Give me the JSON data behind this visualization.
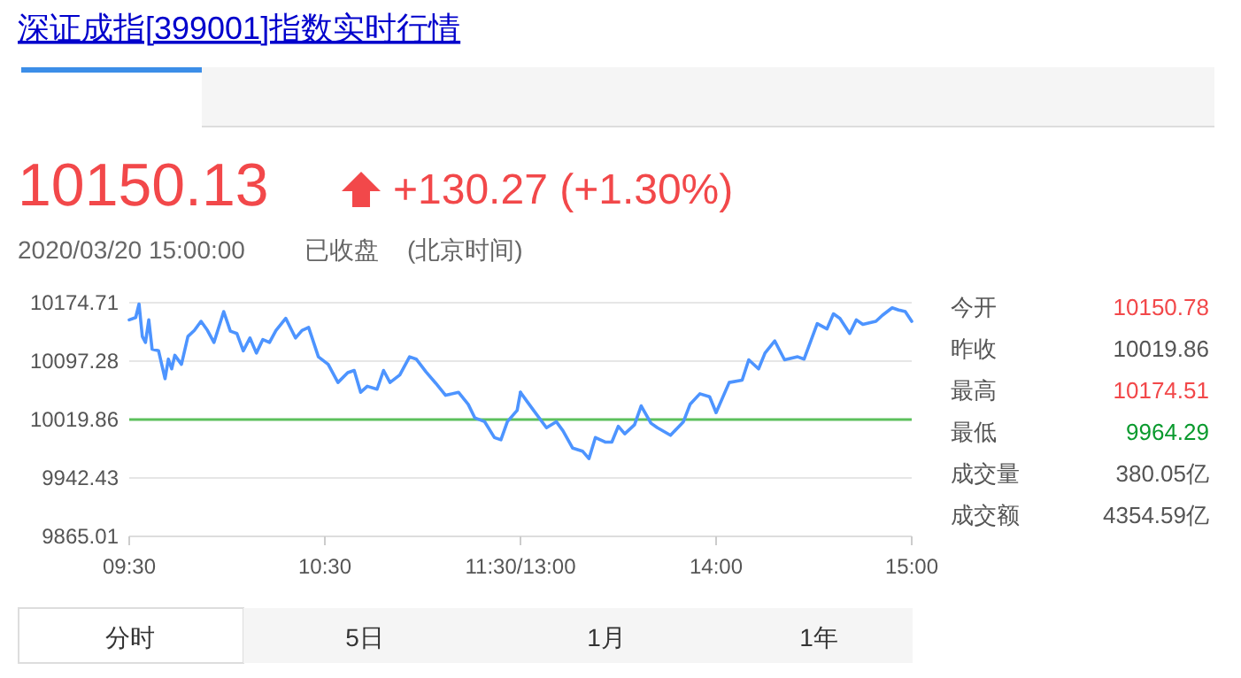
{
  "chart_data": [
    {
      "type": "line",
      "title": "深证成指[399001]指数实时行情",
      "x": [
        9.5,
        9.533,
        9.55,
        9.567,
        9.583,
        9.6,
        9.617,
        9.65,
        9.683,
        9.7,
        9.717,
        9.733,
        9.767,
        9.8,
        9.833,
        9.867,
        9.9,
        9.933,
        9.983,
        10.017,
        10.05,
        10.083,
        10.117,
        10.15,
        10.183,
        10.217,
        10.25,
        10.3,
        10.35,
        10.383,
        10.417,
        10.467,
        10.517,
        10.567,
        10.617,
        10.65,
        10.683,
        10.717,
        10.767,
        10.8,
        10.833,
        10.883,
        10.933,
        10.967,
        11.017,
        11.067,
        11.117,
        11.183,
        11.233,
        11.267,
        11.317,
        11.367,
        11.4,
        11.433,
        11.483,
        11.5
      ],
      "series": [
        {
          "color": "#4d94ff",
          "values": [
            10152,
            10155,
            10173,
            10130,
            10122,
            10152,
            10113,
            10111,
            10074,
            10100,
            10087,
            10105,
            10093,
            10130,
            10138,
            10150,
            10138,
            10122,
            10163,
            10137,
            10134,
            10111,
            10128,
            10108,
            10126,
            10122,
            10138,
            10154,
            10128,
            10138,
            10142,
            10103,
            10093,
            10069,
            10082,
            10085,
            10056,
            10064,
            10060,
            10085,
            10069,
            10079,
            10103,
            10100,
            10083,
            10068,
            10052,
            10056,
            10040,
            10022,
            10017,
            9996,
            9993,
            10017,
            10032,
            10056
          ]
        }
      ],
      "xlim": [
        9.5,
        11.5
      ],
      "xticks": [
        {
          "value": 9.5,
          "label": "09:30"
        },
        {
          "value": 10.5,
          "label": "10:30"
        },
        {
          "value": 11.5,
          "label": "11:30/13:00"
        }
      ],
      "ylim": [
        9865.01,
        10174.71
      ],
      "yticks": [
        {
          "value": 9865.01,
          "label": "9865.01"
        },
        {
          "value": 9942.43,
          "label": "9942.43"
        },
        {
          "value": 10019.86,
          "label": "10019.86"
        },
        {
          "value": 10097.28,
          "label": "10097.28"
        },
        {
          "value": 10174.71,
          "label": "10174.71"
        }
      ],
      "grid": "y",
      "ref_lines": [
        {
          "axis": "y",
          "value": 10019.86,
          "color": "#5cc05c"
        }
      ],
      "annotations": [
        "10150.13",
        "+130.27 (+1.30%)",
        "2020/03/20 15:00:00",
        "已收盘",
        "(北京时间)",
        "今开",
        "10150.78",
        "昨收",
        "10019.86",
        "最高",
        "10174.51",
        "最低",
        "9964.29",
        "成交量",
        "380.05亿",
        "成交额",
        "4354.59亿",
        "分时",
        "5日",
        "1月",
        "1年"
      ]
    },
    {
      "type": "line",
      "x": [
        13,
        13.033,
        13.067,
        13.133,
        13.183,
        13.217,
        13.267,
        13.317,
        13.35,
        13.383,
        13.433,
        13.467,
        13.5,
        13.533,
        13.583,
        13.617,
        13.667,
        13.7,
        13.767,
        13.833,
        13.867,
        13.917,
        13.967,
        14,
        14.067,
        14.133,
        14.167,
        14.217,
        14.25,
        14.3,
        14.35,
        14.417,
        14.45,
        14.517,
        14.567,
        14.6,
        14.633,
        14.683,
        14.717,
        14.75,
        14.817,
        14.85,
        14.9,
        14.933,
        14.967,
        15
      ],
      "series": [
        {
          "color": "#4d94ff",
          "values": [
            10056,
            10044,
            10032,
            10009,
            10017,
            10005,
            9982,
            9978,
            9968,
            9996,
            9990,
            9990,
            10011,
            10001,
            10013,
            10038,
            10015,
            10009,
            9999,
            10017,
            10040,
            10054,
            10050,
            10029,
            10069,
            10072,
            10099,
            10087,
            10108,
            10124,
            10099,
            10103,
            10100,
            10147,
            10140,
            10160,
            10154,
            10134,
            10152,
            10146,
            10150,
            10158,
            10168,
            10165,
            10163,
            10150
          ]
        }
      ],
      "xlim": [
        13,
        15
      ],
      "xticks": [
        {
          "value": 13,
          "label": null
        },
        {
          "value": 14,
          "label": "14:00"
        },
        {
          "value": 15,
          "label": "15:00"
        }
      ],
      "ylim": [
        9865.01,
        10174.71
      ],
      "yticks": [
        9865.01,
        9942.43,
        10019.86,
        10097.28,
        10174.71
      ],
      "tick_labels": "x",
      "grid": "y",
      "ref_lines": [
        {
          "axis": "y",
          "value": 10019.86,
          "color": "#5cc05c"
        }
      ]
    }
  ]
}
